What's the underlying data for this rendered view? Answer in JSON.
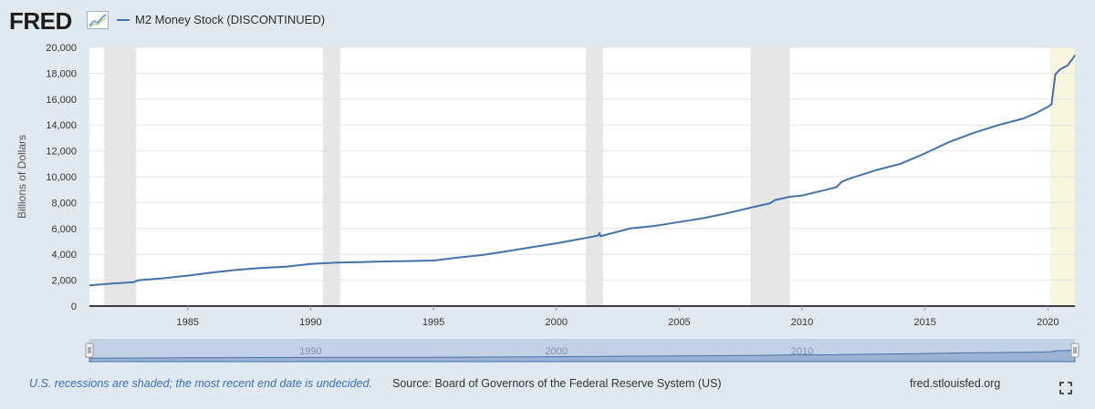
{
  "header": {
    "logo_text": "FRED",
    "legend_label": "M2 Money Stock (DISCONTINUED)"
  },
  "footer": {
    "note": "U.S. recessions are shaded; the most recent end date is undecided.",
    "source": "Source: Board of Governors of the Federal Reserve System (US)",
    "site": "fred.stlouisfed.org"
  },
  "colors": {
    "series": "#4572a7",
    "recession": "#e6e6e6",
    "current_recession": "#f7f5dc",
    "background": "#e1e9f0"
  },
  "chart_data": {
    "type": "line",
    "title": "",
    "xlabel": "",
    "ylabel": "Billions of Dollars",
    "xlim": [
      1981,
      2021.1
    ],
    "ylim": [
      0,
      20000
    ],
    "yticks": [
      0,
      2000,
      4000,
      6000,
      8000,
      10000,
      12000,
      14000,
      16000,
      18000,
      20000
    ],
    "ytick_labels": [
      "0",
      "2,000",
      "4,000",
      "6,000",
      "8,000",
      "10,000",
      "12,000",
      "14,000",
      "16,000",
      "18,000",
      "20,000"
    ],
    "xticks": [
      1985,
      1990,
      1995,
      2000,
      2005,
      2010,
      2015,
      2020
    ],
    "xtick_labels": [
      "1985",
      "1990",
      "1995",
      "2000",
      "2005",
      "2010",
      "2015",
      "2020"
    ],
    "navigator_labels": [
      "1990",
      "2000",
      "2010"
    ],
    "recessions": [
      {
        "start": 1981.6,
        "end": 1982.9,
        "current": false
      },
      {
        "start": 1990.5,
        "end": 1991.2,
        "current": false
      },
      {
        "start": 2001.2,
        "end": 2001.9,
        "current": false
      },
      {
        "start": 2007.9,
        "end": 2009.5,
        "current": false
      },
      {
        "start": 2020.1,
        "end": 2021.1,
        "current": true
      }
    ],
    "grid": true,
    "series": [
      {
        "name": "M2 Money Stock (DISCONTINUED)",
        "x": [
          1981.0,
          1982.0,
          1982.8,
          1983.0,
          1984.0,
          1985.0,
          1986.0,
          1987.0,
          1988.0,
          1989.0,
          1990.0,
          1991.0,
          1992.0,
          1993.0,
          1994.0,
          1995.0,
          1996.0,
          1997.0,
          1998.0,
          1999.0,
          2000.0,
          2001.0,
          2001.7,
          2001.75,
          2001.8,
          2002.0,
          2003.0,
          2004.0,
          2005.0,
          2006.0,
          2007.0,
          2008.0,
          2008.7,
          2008.9,
          2009.5,
          2010.0,
          2011.0,
          2011.4,
          2011.6,
          2012.0,
          2013.0,
          2014.0,
          2015.0,
          2016.0,
          2017.0,
          2018.0,
          2019.0,
          2019.5,
          2020.0,
          2020.15,
          2020.3,
          2020.5,
          2020.8,
          2021.0,
          2021.1
        ],
        "values": [
          1600,
          1750,
          1850,
          2000,
          2150,
          2350,
          2600,
          2800,
          2950,
          3050,
          3250,
          3350,
          3400,
          3450,
          3480,
          3520,
          3750,
          3950,
          4250,
          4550,
          4850,
          5200,
          5450,
          5650,
          5400,
          5500,
          6000,
          6200,
          6500,
          6800,
          7200,
          7650,
          7950,
          8200,
          8450,
          8550,
          9000,
          9200,
          9600,
          9900,
          10500,
          11000,
          11800,
          12700,
          13400,
          14000,
          14500,
          14900,
          15400,
          15600,
          17900,
          18300,
          18600,
          19100,
          19400
        ]
      }
    ]
  }
}
